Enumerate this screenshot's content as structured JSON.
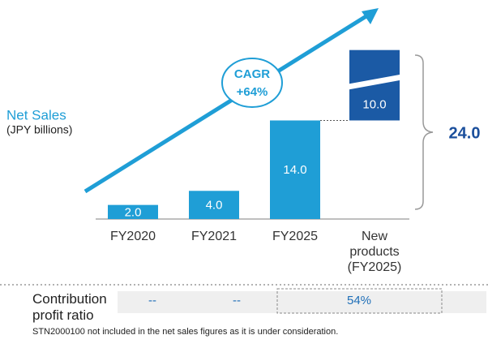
{
  "chart_data": {
    "type": "waterfall",
    "y_label": "Net Sales",
    "y_sublabel": "(JPY billions)",
    "categories": [
      "FY2020",
      "FY2021",
      "FY2025",
      "New products (FY2025)"
    ],
    "values": [
      2,
      4,
      14,
      10
    ],
    "value_labels": [
      "2.0",
      "4.0",
      "14.0",
      "10.0"
    ],
    "colors": [
      "#1f9ed6",
      "#1f9ed6",
      "#1f9ed6",
      "#1b5aa5"
    ],
    "ylim": [
      0,
      25
    ],
    "total": 24,
    "total_label": "24.0",
    "annotation": {
      "title": "CAGR",
      "value": "+64%"
    },
    "ratio_row": {
      "label": "Contribution profit ratio",
      "cells": [
        "--",
        "--",
        "54%"
      ]
    },
    "footnote": "STN2000100 not included in the net sales figures as it is under consideration."
  }
}
